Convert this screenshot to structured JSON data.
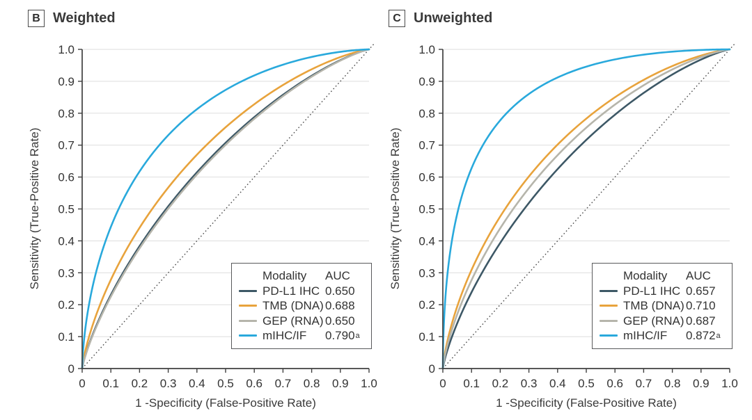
{
  "figure": {
    "background": "#ffffff",
    "text_color": "#333333",
    "axis_color": "#3f3f3f",
    "grid_color": "#dddddd",
    "diagonal_color": "#4a4a4a",
    "legend_border_color": "#58595b"
  },
  "panels": [
    {
      "letter": "B",
      "title": "Weighted",
      "xlabel": "1 -Specificity (False-Positive Rate)",
      "ylabel": "Sensitivity (True-Positive Rate)",
      "legend": {
        "modality_header": "Modality",
        "auc_header": "AUC"
      }
    },
    {
      "letter": "C",
      "title": "Unweighted",
      "xlabel": "1 -Specificity (False-Positive Rate)",
      "ylabel": "Sensitivity (True-Positive Rate)",
      "legend": {
        "modality_header": "Modality",
        "auc_header": "AUC"
      }
    }
  ],
  "chart_data": [
    {
      "type": "line",
      "subtype": "roc-curves",
      "title": "Weighted",
      "xlabel": "1 -Specificity (False-Positive Rate)",
      "ylabel": "Sensitivity (True-Positive Rate)",
      "xlim": [
        0,
        1
      ],
      "ylim": [
        0,
        1
      ],
      "x_ticks": [
        "0",
        "0.1",
        "0.2",
        "0.3",
        "0.4",
        "0.5",
        "0.6",
        "0.7",
        "0.8",
        "0.9",
        "1.0"
      ],
      "y_ticks": [
        "0",
        "0.1",
        "0.2",
        "0.3",
        "0.4",
        "0.5",
        "0.6",
        "0.7",
        "0.8",
        "0.9",
        "1.0"
      ],
      "grid": "horizontal-only",
      "diagonal_reference": "dotted chance line from (0,0) to (1,1)",
      "legend_position": "lower-right",
      "series": [
        {
          "name": "PD-L1 IHC",
          "auc": "0.650",
          "auc_superscript": "",
          "color": "#3d5866"
        },
        {
          "name": "TMB (DNA)",
          "auc": "0.688",
          "auc_superscript": "",
          "color": "#e8a33c"
        },
        {
          "name": "GEP (RNA)",
          "auc": "0.650",
          "auc_superscript": "",
          "color": "#b6b5ab"
        },
        {
          "name": "mIHC/IF",
          "auc": "0.790",
          "auc_superscript": "a",
          "color": "#29a9dc"
        }
      ]
    },
    {
      "type": "line",
      "subtype": "roc-curves",
      "title": "Unweighted",
      "xlabel": "1 -Specificity (False-Positive Rate)",
      "ylabel": "Sensitivity (True-Positive Rate)",
      "xlim": [
        0,
        1
      ],
      "ylim": [
        0,
        1
      ],
      "x_ticks": [
        "0",
        "0.1",
        "0.2",
        "0.3",
        "0.4",
        "0.5",
        "0.6",
        "0.7",
        "0.8",
        "0.9",
        "1.0"
      ],
      "y_ticks": [
        "0",
        "0.1",
        "0.2",
        "0.3",
        "0.4",
        "0.5",
        "0.6",
        "0.7",
        "0.8",
        "0.9",
        "1.0"
      ],
      "grid": "horizontal-only",
      "diagonal_reference": "dotted chance line from (0,0) to (1,1)",
      "legend_position": "lower-right",
      "series": [
        {
          "name": "PD-L1 IHC",
          "auc": "0.657",
          "auc_superscript": "",
          "color": "#3d5866"
        },
        {
          "name": "TMB (DNA)",
          "auc": "0.710",
          "auc_superscript": "",
          "color": "#e8a33c"
        },
        {
          "name": "GEP (RNA)",
          "auc": "0.687",
          "auc_superscript": "",
          "color": "#b6b5ab"
        },
        {
          "name": "mIHC/IF",
          "auc": "0.872",
          "auc_superscript": "a",
          "color": "#29a9dc"
        }
      ]
    }
  ]
}
